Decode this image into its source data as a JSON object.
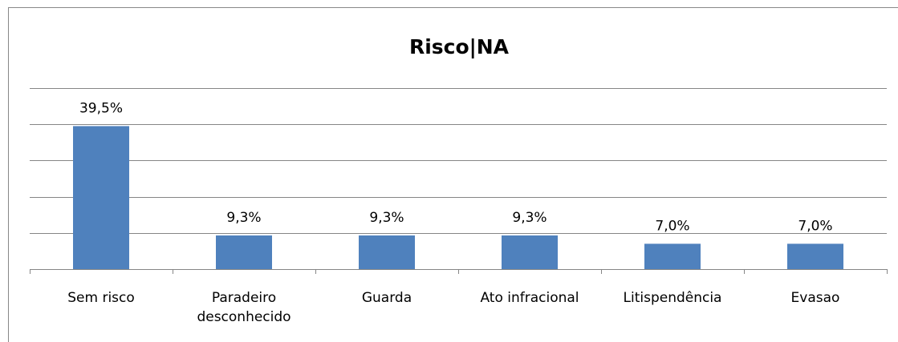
{
  "chart_data": {
    "type": "bar",
    "title": "Risco|NA",
    "categories": [
      "Sem risco",
      "Paradeiro desconhecido",
      "Guarda",
      "Ato infracional",
      "Litispendência",
      "Evasao"
    ],
    "values": [
      39.5,
      9.3,
      9.3,
      9.3,
      7.0,
      7.0
    ],
    "value_labels": [
      "39,5%",
      "9,3%",
      "9,3%",
      "9,3%",
      "7,0%",
      "7,0%"
    ],
    "color": "#4f81bd",
    "ylim": [
      0,
      50
    ],
    "yticks": [
      0,
      10,
      20,
      30,
      40,
      50
    ],
    "grid": true
  }
}
